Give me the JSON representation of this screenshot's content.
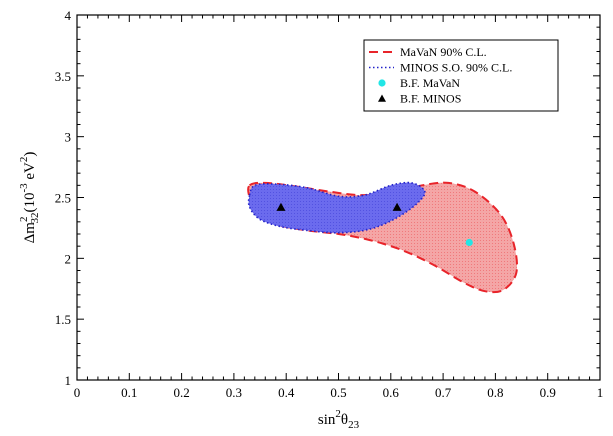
{
  "chart_data": {
    "type": "scatter",
    "xlim": [
      0,
      1
    ],
    "ylim": [
      1,
      4
    ],
    "x_ticks": [
      "0",
      "0.1",
      "0.2",
      "0.3",
      "0.4",
      "0.5",
      "0.6",
      "0.7",
      "0.8",
      "0.9",
      "1"
    ],
    "y_ticks": [
      "1",
      "1.5",
      "2",
      "2.5",
      "3",
      "3.5",
      "4"
    ],
    "xlabel": {
      "base": "sin",
      "sup": "2",
      "theta": "θ",
      "sub": "23"
    },
    "ylabel": {
      "delta": "Δm",
      "sup": "2",
      "sub": "32",
      "unit_open": "(10",
      "unit_exp": "-3",
      "unit_mid": " eV",
      "unit_exp2": "2",
      "unit_close": ")"
    },
    "grid": false,
    "legend_position": "top-right",
    "regions": [
      {
        "name": "MaVaN 90% C.L.",
        "fill": "#f4a6a6",
        "stroke": "#e8242a",
        "dash": "dashed",
        "points": [
          [
            0.33,
            2.6
          ],
          [
            0.36,
            2.62
          ],
          [
            0.42,
            2.59
          ],
          [
            0.48,
            2.55
          ],
          [
            0.54,
            2.52
          ],
          [
            0.6,
            2.54
          ],
          [
            0.66,
            2.6
          ],
          [
            0.71,
            2.62
          ],
          [
            0.76,
            2.55
          ],
          [
            0.81,
            2.36
          ],
          [
            0.835,
            2.12
          ],
          [
            0.84,
            1.88
          ],
          [
            0.815,
            1.74
          ],
          [
            0.78,
            1.73
          ],
          [
            0.74,
            1.8
          ],
          [
            0.68,
            1.95
          ],
          [
            0.62,
            2.07
          ],
          [
            0.56,
            2.15
          ],
          [
            0.5,
            2.2
          ],
          [
            0.44,
            2.23
          ],
          [
            0.38,
            2.28
          ],
          [
            0.345,
            2.38
          ],
          [
            0.33,
            2.5
          ]
        ]
      },
      {
        "name": "MINOS S.O. 90% C.L.",
        "fill": "#6b6bee",
        "stroke": "#2121c9",
        "dash": "dotted",
        "points": [
          [
            0.33,
            2.52
          ],
          [
            0.34,
            2.6
          ],
          [
            0.38,
            2.61
          ],
          [
            0.44,
            2.58
          ],
          [
            0.5,
            2.51
          ],
          [
            0.55,
            2.52
          ],
          [
            0.6,
            2.6
          ],
          [
            0.64,
            2.62
          ],
          [
            0.665,
            2.55
          ],
          [
            0.65,
            2.45
          ],
          [
            0.61,
            2.33
          ],
          [
            0.56,
            2.24
          ],
          [
            0.5,
            2.21
          ],
          [
            0.44,
            2.23
          ],
          [
            0.39,
            2.26
          ],
          [
            0.35,
            2.32
          ],
          [
            0.33,
            2.42
          ]
        ]
      }
    ],
    "points": [
      {
        "name": "B.F. MaVaN",
        "marker": "circle",
        "color": "#22e6e6",
        "x": 0.75,
        "y": 2.13
      },
      {
        "name": "B.F. MINOS",
        "marker": "triangle",
        "color": "#000000",
        "x": 0.39,
        "y": 2.42
      },
      {
        "name": "B.F. MINOS",
        "marker": "triangle",
        "color": "#000000",
        "x": 0.612,
        "y": 2.42
      }
    ],
    "legend": [
      {
        "label": "MaVaN 90% C.L.",
        "kind": "line",
        "color": "#e8242a",
        "dash": "dashed"
      },
      {
        "label": "MINOS S.O. 90% C.L.",
        "kind": "line",
        "color": "#2121c9",
        "dash": "dotted"
      },
      {
        "label": "B.F. MaVaN",
        "kind": "circle",
        "color": "#22e6e6"
      },
      {
        "label": "B.F. MINOS",
        "kind": "triangle",
        "color": "#000000"
      }
    ]
  }
}
